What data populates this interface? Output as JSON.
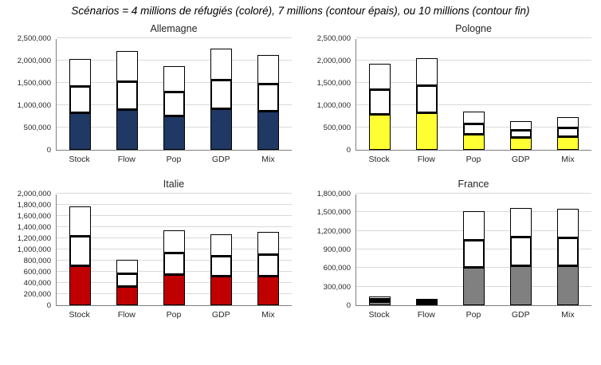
{
  "page_title": "Scénarios = 4 millions de réfugiés (coloré), 7 millions (contour épais), ou 10 millions (contour fin)",
  "chart_data": [
    {
      "type": "bar",
      "title": "Allemagne",
      "bar_color": "#1f3864",
      "categories": [
        "Stock",
        "Flow",
        "Pop",
        "GDP",
        "Mix"
      ],
      "ylim": [
        0,
        2500000
      ],
      "ytick_step": 500000,
      "grid": true,
      "legend_position": "none",
      "series": [
        {
          "name": "4 millions (coloré)",
          "values": [
            820000,
            890000,
            750000,
            910000,
            850000
          ]
        },
        {
          "name": "7 millions (contour épais)",
          "values": [
            1430000,
            1540000,
            1310000,
            1570000,
            1480000
          ]
        },
        {
          "name": "10 millions (contour fin)",
          "values": [
            2030000,
            2220000,
            1870000,
            2260000,
            2130000
          ]
        }
      ]
    },
    {
      "type": "bar",
      "title": "Pologne",
      "bar_color": "#ffff33",
      "categories": [
        "Stock",
        "Flow",
        "Pop",
        "GDP",
        "Mix"
      ],
      "ylim": [
        0,
        2500000
      ],
      "ytick_step": 500000,
      "grid": true,
      "legend_position": "none",
      "series": [
        {
          "name": "4 millions (coloré)",
          "values": [
            780000,
            830000,
            340000,
            260000,
            290000
          ]
        },
        {
          "name": "7 millions (contour épais)",
          "values": [
            1350000,
            1440000,
            590000,
            450000,
            500000
          ]
        },
        {
          "name": "10 millions (contour fin)",
          "values": [
            1930000,
            2060000,
            850000,
            640000,
            730000
          ]
        }
      ]
    },
    {
      "type": "bar",
      "title": "Italie",
      "bar_color": "#c00000",
      "categories": [
        "Stock",
        "Flow",
        "Pop",
        "GDP",
        "Mix"
      ],
      "ylim": [
        0,
        2000000
      ],
      "ytick_step": 200000,
      "grid": true,
      "legend_position": "none",
      "series": [
        {
          "name": "4 millions (coloré)",
          "values": [
            700000,
            330000,
            540000,
            510000,
            520000
          ]
        },
        {
          "name": "7 millions (contour épais)",
          "values": [
            1240000,
            570000,
            950000,
            890000,
            920000
          ]
        },
        {
          "name": "10 millions (contour fin)",
          "values": [
            1770000,
            820000,
            1350000,
            1270000,
            1310000
          ]
        }
      ]
    },
    {
      "type": "bar",
      "title": "France",
      "bar_color": "#808080",
      "categories": [
        "Stock",
        "Flow",
        "Pop",
        "GDP",
        "Mix"
      ],
      "ylim": [
        0,
        1800000
      ],
      "ytick_step": 300000,
      "grid": true,
      "legend_position": "none",
      "series": [
        {
          "name": "4 millions (coloré)",
          "values": [
            50000,
            20000,
            610000,
            630000,
            630000
          ]
        },
        {
          "name": "7 millions (contour épais)",
          "values": [
            90000,
            35000,
            1060000,
            1100000,
            1090000
          ]
        },
        {
          "name": "10 millions (contour fin)",
          "values": [
            130000,
            50000,
            1520000,
            1570000,
            1550000
          ]
        }
      ]
    }
  ]
}
